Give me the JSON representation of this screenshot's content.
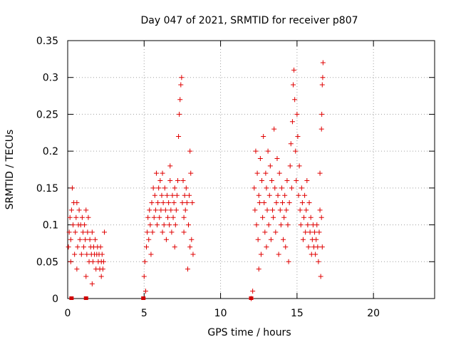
{
  "chart_data": {
    "type": "scatter",
    "title": "Day 047 of 2021, SRMTID for receiver p807",
    "xlabel": "GPS time / hours",
    "ylabel": "SRMTID / TECUs",
    "xlim": [
      0,
      24
    ],
    "ylim": [
      0,
      0.35
    ],
    "x_ticks": [
      0,
      5,
      10,
      15,
      20
    ],
    "x_tick_labels": [
      "0",
      "5",
      "10",
      "15",
      "20"
    ],
    "y_ticks": [
      0,
      0.05,
      0.1,
      0.15,
      0.2,
      0.25,
      0.3,
      0.35
    ],
    "y_tick_labels": [
      "0",
      "0.05",
      "0.1",
      "0.15",
      "0.2",
      "0.25",
      "0.3",
      "0.35"
    ],
    "grid": true,
    "marker": "plus",
    "color": "#e00000",
    "series": [
      {
        "name": "SRMTID",
        "points": [
          [
            0.05,
            0.07
          ],
          [
            0.1,
            0.09
          ],
          [
            0.15,
            0.11
          ],
          [
            0.2,
            0.08
          ],
          [
            0.25,
            0.12
          ],
          [
            0.3,
            0.15
          ],
          [
            0.35,
            0.1
          ],
          [
            0.4,
            0.13
          ],
          [
            0.45,
            0.06
          ],
          [
            0.5,
            0.09
          ],
          [
            0.55,
            0.11
          ],
          [
            0.6,
            0.13
          ],
          [
            0.65,
            0.07
          ],
          [
            0.7,
            0.1
          ],
          [
            0.75,
            0.12
          ],
          [
            0.8,
            0.08
          ],
          [
            0.85,
            0.1
          ],
          [
            0.9,
            0.06
          ],
          [
            0.95,
            0.11
          ],
          [
            1.0,
            0.09
          ],
          [
            1.05,
            0.07
          ],
          [
            1.1,
            0.1
          ],
          [
            1.15,
            0.08
          ],
          [
            1.2,
            0.12
          ],
          [
            1.25,
            0.06
          ],
          [
            1.3,
            0.09
          ],
          [
            1.35,
            0.11
          ],
          [
            1.4,
            0.05
          ],
          [
            1.45,
            0.08
          ],
          [
            1.5,
            0.07
          ],
          [
            1.55,
            0.06
          ],
          [
            1.6,
            0.09
          ],
          [
            1.65,
            0.05
          ],
          [
            1.7,
            0.07
          ],
          [
            1.75,
            0.06
          ],
          [
            1.8,
            0.08
          ],
          [
            1.85,
            0.04
          ],
          [
            1.9,
            0.06
          ],
          [
            1.95,
            0.07
          ],
          [
            2.0,
            0.05
          ],
          [
            2.05,
            0.06
          ],
          [
            2.1,
            0.04
          ],
          [
            2.15,
            0.07
          ],
          [
            2.2,
            0.05
          ],
          [
            2.25,
            0.06
          ],
          [
            2.3,
            0.04
          ],
          [
            2.35,
            0.05
          ],
          [
            2.4,
            0.09
          ],
          [
            0.2,
            0.05
          ],
          [
            0.6,
            0.04
          ],
          [
            1.2,
            0.03
          ],
          [
            1.6,
            0.02
          ],
          [
            2.2,
            0.03
          ],
          [
            5.0,
            0.03
          ],
          [
            5.05,
            0.05
          ],
          [
            5.1,
            0.01
          ],
          [
            5.15,
            0.07
          ],
          [
            5.2,
            0.09
          ],
          [
            5.25,
            0.11
          ],
          [
            5.3,
            0.08
          ],
          [
            5.35,
            0.12
          ],
          [
            5.4,
            0.1
          ],
          [
            5.45,
            0.06
          ],
          [
            5.5,
            0.13
          ],
          [
            5.55,
            0.09
          ],
          [
            5.6,
            0.15
          ],
          [
            5.65,
            0.11
          ],
          [
            5.7,
            0.14
          ],
          [
            5.75,
            0.12
          ],
          [
            5.8,
            0.17
          ],
          [
            5.85,
            0.1
          ],
          [
            5.9,
            0.13
          ],
          [
            5.95,
            0.15
          ],
          [
            6.0,
            0.11
          ],
          [
            6.05,
            0.16
          ],
          [
            6.1,
            0.12
          ],
          [
            6.15,
            0.14
          ],
          [
            6.2,
            0.09
          ],
          [
            6.25,
            0.13
          ],
          [
            6.3,
            0.1
          ],
          [
            6.35,
            0.15
          ],
          [
            6.4,
            0.12
          ],
          [
            6.45,
            0.08
          ],
          [
            6.5,
            0.14
          ],
          [
            6.55,
            0.11
          ],
          [
            6.6,
            0.13
          ],
          [
            6.65,
            0.1
          ],
          [
            6.7,
            0.16
          ],
          [
            6.75,
            0.12
          ],
          [
            6.8,
            0.09
          ],
          [
            6.85,
            0.14
          ],
          [
            6.9,
            0.11
          ],
          [
            6.95,
            0.13
          ],
          [
            7.0,
            0.15
          ],
          [
            7.05,
            0.1
          ],
          [
            7.1,
            0.12
          ],
          [
            7.15,
            0.14
          ],
          [
            7.2,
            0.16
          ],
          [
            7.25,
            0.22
          ],
          [
            7.3,
            0.25
          ],
          [
            7.35,
            0.27
          ],
          [
            7.4,
            0.29
          ],
          [
            7.45,
            0.3
          ],
          [
            7.5,
            0.13
          ],
          [
            7.55,
            0.16
          ],
          [
            7.6,
            0.11
          ],
          [
            7.65,
            0.14
          ],
          [
            7.7,
            0.12
          ],
          [
            7.75,
            0.15
          ],
          [
            7.8,
            0.13
          ],
          [
            7.85,
            0.04
          ],
          [
            7.9,
            0.1
          ],
          [
            7.95,
            0.14
          ],
          [
            8.0,
            0.2
          ],
          [
            8.05,
            0.17
          ],
          [
            8.1,
            0.08
          ],
          [
            8.15,
            0.13
          ],
          [
            8.2,
            0.06
          ],
          [
            6.2,
            0.17
          ],
          [
            6.7,
            0.18
          ],
          [
            7.0,
            0.07
          ],
          [
            7.6,
            0.09
          ],
          [
            8.0,
            0.07
          ],
          [
            12.0,
            0.0
          ],
          [
            12.1,
            0.01
          ],
          [
            12.2,
            0.15
          ],
          [
            12.25,
            0.12
          ],
          [
            12.3,
            0.2
          ],
          [
            12.35,
            0.1
          ],
          [
            12.4,
            0.17
          ],
          [
            12.45,
            0.08
          ],
          [
            12.5,
            0.14
          ],
          [
            12.55,
            0.13
          ],
          [
            12.6,
            0.19
          ],
          [
            12.65,
            0.06
          ],
          [
            12.7,
            0.16
          ],
          [
            12.75,
            0.11
          ],
          [
            12.8,
            0.22
          ],
          [
            12.85,
            0.13
          ],
          [
            12.9,
            0.09
          ],
          [
            12.95,
            0.17
          ],
          [
            13.0,
            0.15
          ],
          [
            13.05,
            0.12
          ],
          [
            13.1,
            0.2
          ],
          [
            13.15,
            0.1
          ],
          [
            13.2,
            0.14
          ],
          [
            13.25,
            0.18
          ],
          [
            13.3,
            0.08
          ],
          [
            13.35,
            0.16
          ],
          [
            13.4,
            0.12
          ],
          [
            13.45,
            0.11
          ],
          [
            13.5,
            0.23
          ],
          [
            13.55,
            0.15
          ],
          [
            13.6,
            0.09
          ],
          [
            13.65,
            0.13
          ],
          [
            13.7,
            0.19
          ],
          [
            13.75,
            0.14
          ],
          [
            13.8,
            0.06
          ],
          [
            13.85,
            0.17
          ],
          [
            13.9,
            0.12
          ],
          [
            13.95,
            0.1
          ],
          [
            14.0,
            0.15
          ],
          [
            14.05,
            0.13
          ],
          [
            14.1,
            0.08
          ],
          [
            14.15,
            0.11
          ],
          [
            14.2,
            0.14
          ],
          [
            14.25,
            0.07
          ],
          [
            14.3,
            0.12
          ],
          [
            14.35,
            0.16
          ],
          [
            14.4,
            0.1
          ],
          [
            14.45,
            0.05
          ],
          [
            14.5,
            0.13
          ],
          [
            14.55,
            0.18
          ],
          [
            14.6,
            0.21
          ],
          [
            14.65,
            0.15
          ],
          [
            14.7,
            0.24
          ],
          [
            14.75,
            0.29
          ],
          [
            14.8,
            0.31
          ],
          [
            14.85,
            0.27
          ],
          [
            14.9,
            0.2
          ],
          [
            14.95,
            0.16
          ],
          [
            15.0,
            0.25
          ],
          [
            15.05,
            0.22
          ],
          [
            15.1,
            0.14
          ],
          [
            15.15,
            0.18
          ],
          [
            15.2,
            0.12
          ],
          [
            15.25,
            0.1
          ],
          [
            15.3,
            0.15
          ],
          [
            15.35,
            0.13
          ],
          [
            15.4,
            0.08
          ],
          [
            15.45,
            0.11
          ],
          [
            15.5,
            0.14
          ],
          [
            15.55,
            0.09
          ],
          [
            15.6,
            0.12
          ],
          [
            15.65,
            0.16
          ],
          [
            15.7,
            0.1
          ],
          [
            15.75,
            0.07
          ],
          [
            15.8,
            0.13
          ],
          [
            15.85,
            0.09
          ],
          [
            15.9,
            0.11
          ],
          [
            15.95,
            0.06
          ],
          [
            16.0,
            0.08
          ],
          [
            16.05,
            0.1
          ],
          [
            16.1,
            0.07
          ],
          [
            16.15,
            0.09
          ],
          [
            16.2,
            0.06
          ],
          [
            16.25,
            0.08
          ],
          [
            16.3,
            0.1
          ],
          [
            16.35,
            0.07
          ],
          [
            16.4,
            0.05
          ],
          [
            16.45,
            0.09
          ],
          [
            16.5,
            0.17
          ],
          [
            16.55,
            0.03
          ],
          [
            16.6,
            0.23
          ],
          [
            16.62,
            0.25
          ],
          [
            16.65,
            0.29
          ],
          [
            16.68,
            0.3
          ],
          [
            16.7,
            0.32
          ],
          [
            16.5,
            0.12
          ],
          [
            16.6,
            0.11
          ],
          [
            16.65,
            0.07
          ],
          [
            12.5,
            0.04
          ],
          [
            13.0,
            0.07
          ]
        ]
      }
    ],
    "zero_markers_x": [
      0.25,
      1.2,
      4.95,
      12.0
    ]
  }
}
